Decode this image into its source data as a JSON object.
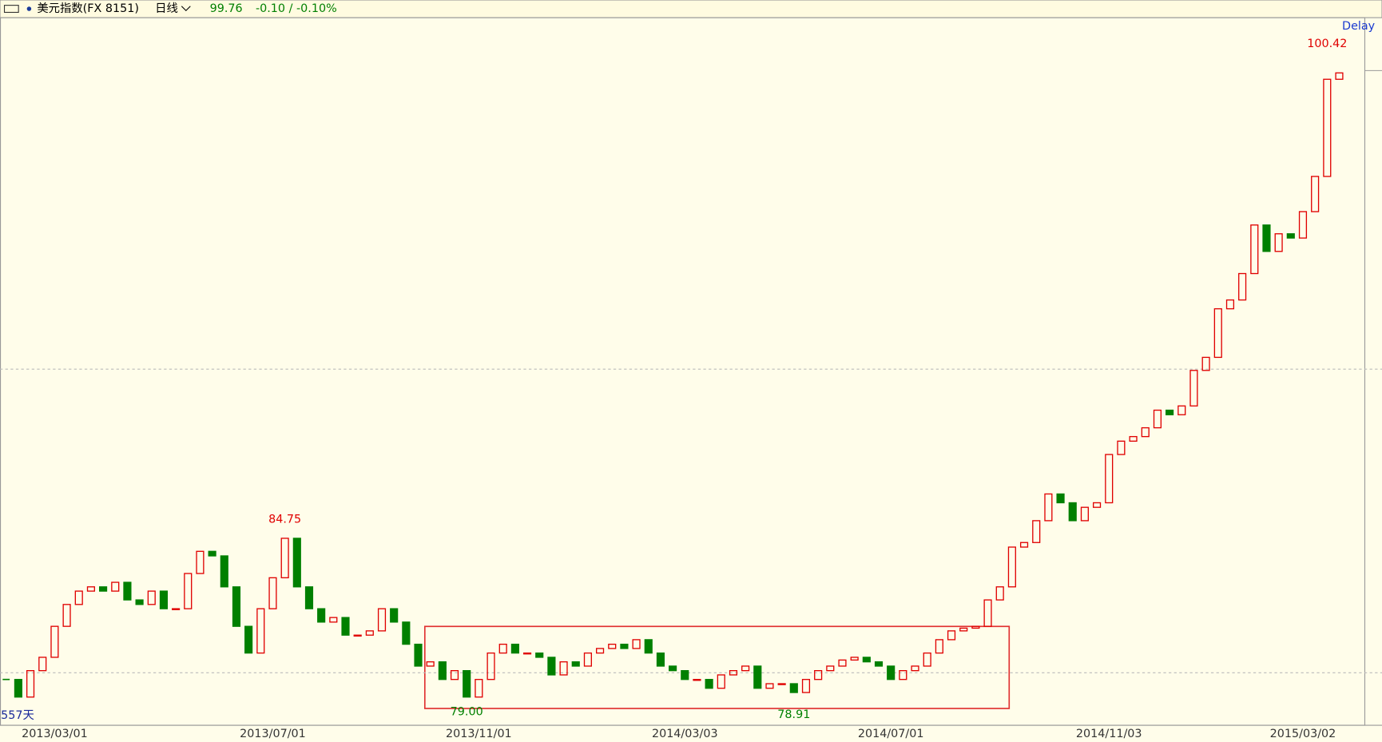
{
  "header": {
    "name": "美元指数(FX 8151)",
    "period": "日线",
    "last": "99.76",
    "change": "-0.10 / -0.10%"
  },
  "chart_data": {
    "type": "candlestick",
    "note_delay": "Delay",
    "note_days": "557天",
    "up_color": "#e00000",
    "down_color": "#008000",
    "ylim": [
      78.33,
      101.58
    ],
    "gridlines": [
      80,
      90
    ],
    "categories": [
      null,
      null,
      null,
      null,
      "2013/03/01",
      null,
      null,
      null,
      null,
      null,
      null,
      null,
      null,
      null,
      null,
      null,
      null,
      null,
      null,
      null,
      null,
      null,
      "2013/07/01",
      null,
      null,
      null,
      null,
      null,
      null,
      null,
      null,
      null,
      null,
      null,
      null,
      null,
      null,
      null,
      null,
      "2013/11/01",
      null,
      null,
      null,
      null,
      null,
      null,
      null,
      null,
      null,
      null,
      null,
      null,
      null,
      null,
      null,
      null,
      "2014/03/03",
      null,
      null,
      null,
      null,
      null,
      null,
      null,
      null,
      null,
      null,
      null,
      null,
      null,
      null,
      null,
      null,
      "2014/07/01",
      null,
      null,
      null,
      null,
      null,
      null,
      null,
      null,
      null,
      null,
      null,
      null,
      null,
      null,
      null,
      null,
      null,
      "2014/11/03",
      null,
      null,
      null,
      null,
      null,
      null,
      null,
      null,
      null,
      null,
      null,
      null,
      null,
      null,
      null,
      "2015/03/02",
      null,
      null,
      null
    ],
    "values": [
      79.78,
      79.2,
      80.07,
      80.51,
      81.53,
      82.25,
      82.69,
      82.83,
      82.69,
      82.98,
      82.4,
      82.25,
      82.69,
      82.11,
      82.11,
      83.27,
      84.0,
      83.85,
      82.83,
      81.53,
      80.65,
      82.11,
      83.13,
      84.43,
      82.83,
      82.11,
      81.67,
      81.82,
      81.24,
      81.24,
      81.38,
      82.11,
      81.67,
      80.94,
      80.22,
      80.36,
      79.78,
      80.07,
      79.2,
      79.78,
      80.65,
      80.94,
      80.65,
      80.65,
      80.51,
      79.93,
      80.36,
      80.22,
      80.65,
      80.8,
      80.94,
      80.8,
      81.09,
      80.65,
      80.22,
      80.07,
      79.78,
      79.78,
      79.49,
      79.93,
      80.07,
      80.22,
      79.49,
      79.64,
      79.64,
      79.35,
      79.78,
      80.07,
      80.22,
      80.42,
      80.51,
      80.36,
      80.22,
      79.78,
      80.07,
      80.22,
      80.65,
      81.09,
      81.38,
      81.47,
      81.53,
      82.4,
      82.83,
      84.14,
      84.29,
      85.01,
      85.89,
      85.6,
      85.01,
      85.45,
      85.6,
      87.19,
      87.63,
      87.78,
      88.07,
      88.65,
      88.5,
      88.79,
      89.96,
      90.39,
      91.99,
      92.28,
      93.15,
      94.75,
      93.88,
      94.46,
      94.32,
      95.19,
      96.35,
      99.55,
      99.76
    ],
    "annotations": [
      {
        "value": 84.75,
        "label": "84.75",
        "index": 23,
        "color": "#e00000"
      },
      {
        "value": 79,
        "label": "79.00",
        "index": 38,
        "color": "#008000"
      },
      {
        "value": 78.91,
        "label": "78.91",
        "index": 65,
        "color": "#008000"
      },
      {
        "value": 100.42,
        "label": "100.42",
        "index": 109,
        "color": "#e00000"
      }
    ]
  }
}
